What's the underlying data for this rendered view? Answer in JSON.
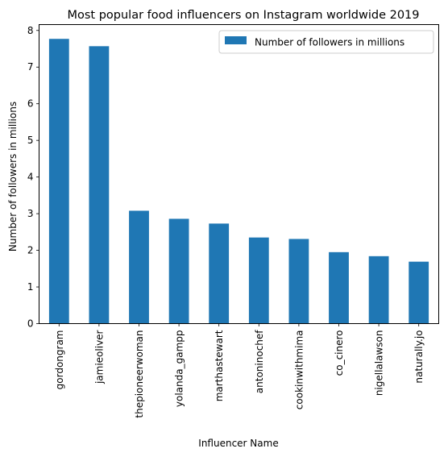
{
  "chart_data": {
    "type": "bar",
    "title": "Most popular food influencers on Instagram worldwide 2019",
    "xlabel": "Influencer Name",
    "ylabel": "Number of followers in millions",
    "categories": [
      "gordongram",
      "jamieoliver",
      "thepioneerwoman",
      "yolanda_gampp",
      "marthastewart",
      "antoninochef",
      "cookinwithmima",
      "co_cinero",
      "nigellalawson",
      "naturally.jo"
    ],
    "series": [
      {
        "name": "Number of followers in millions",
        "values": [
          7.77,
          7.57,
          3.08,
          2.86,
          2.73,
          2.35,
          2.31,
          1.95,
          1.84,
          1.69
        ],
        "color": "#1f77b4"
      }
    ],
    "yticks": [
      0,
      1,
      2,
      3,
      4,
      5,
      6,
      7,
      8
    ],
    "ylim": [
      0,
      8.16
    ],
    "grid": false,
    "legend_position": "top-right"
  }
}
